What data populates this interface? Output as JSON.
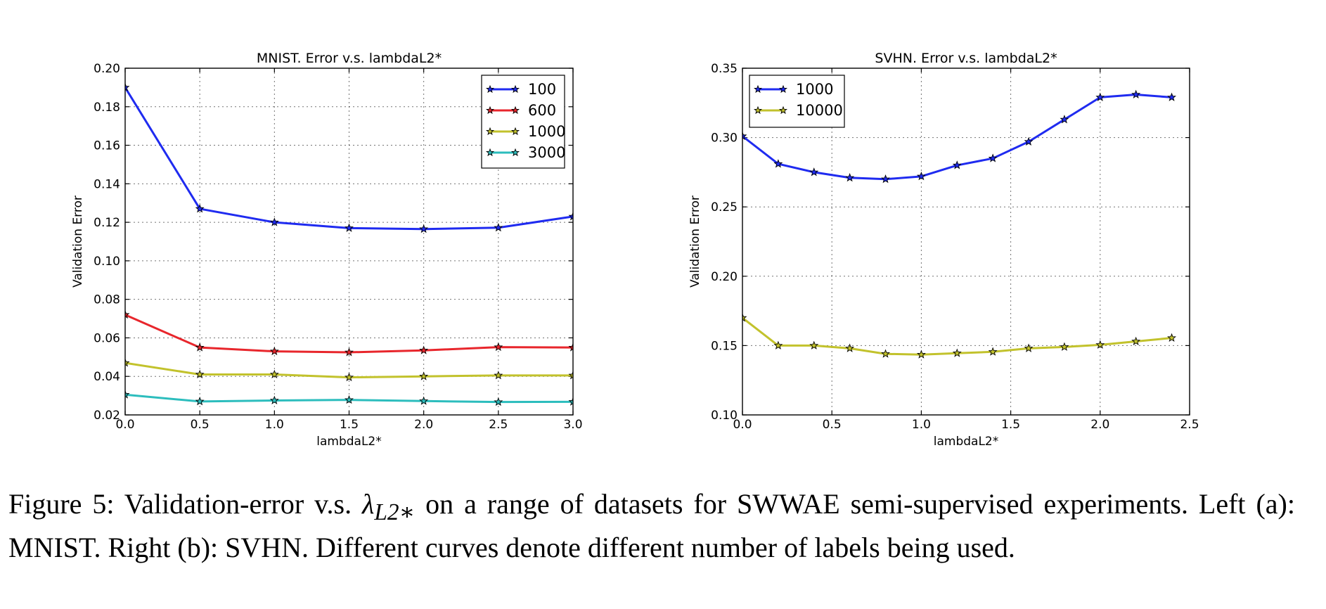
{
  "chart_data": [
    {
      "type": "line",
      "title": "MNIST. Error v.s. lambdaL2*",
      "xlabel": "lambdaL2*",
      "ylabel": "Validation Error",
      "xlim": [
        0.0,
        3.0
      ],
      "ylim": [
        0.02,
        0.2
      ],
      "xticks": [
        "0.0",
        "0.5",
        "1.0",
        "1.5",
        "2.0",
        "2.5",
        "3.0"
      ],
      "yticks": [
        "0.02",
        "0.04",
        "0.06",
        "0.08",
        "0.10",
        "0.12",
        "0.14",
        "0.16",
        "0.18",
        "0.20"
      ],
      "grid": true,
      "legend_position": "top-right",
      "x": [
        0.0,
        0.5,
        1.0,
        1.5,
        2.0,
        2.5,
        3.0
      ],
      "series": [
        {
          "name": "100",
          "color": "#1f2bf0",
          "values": [
            0.19,
            0.127,
            0.12,
            0.117,
            0.1165,
            0.1172,
            0.123
          ]
        },
        {
          "name": "600",
          "color": "#e8262c",
          "values": [
            0.072,
            0.055,
            0.053,
            0.0525,
            0.0535,
            0.0552,
            0.055
          ]
        },
        {
          "name": "1000",
          "color": "#c2c22c",
          "values": [
            0.047,
            0.041,
            0.041,
            0.0395,
            0.04,
            0.0405,
            0.0405
          ]
        },
        {
          "name": "3000",
          "color": "#2cbdbd",
          "values": [
            0.0305,
            0.027,
            0.0275,
            0.0278,
            0.0272,
            0.0267,
            0.0268
          ]
        }
      ]
    },
    {
      "type": "line",
      "title": "SVHN. Error v.s. lambdaL2*",
      "xlabel": "lambdaL2*",
      "ylabel": "Validation Error",
      "xlim": [
        0.0,
        2.5
      ],
      "ylim": [
        0.1,
        0.35
      ],
      "xticks": [
        "0.0",
        "0.5",
        "1.0",
        "1.5",
        "2.0",
        "2.5"
      ],
      "yticks": [
        "0.10",
        "0.15",
        "0.20",
        "0.25",
        "0.30",
        "0.35"
      ],
      "grid": true,
      "legend_position": "top-left",
      "x": [
        0.0,
        0.2,
        0.4,
        0.6,
        0.8,
        1.0,
        1.2,
        1.4,
        1.6,
        1.8,
        2.0,
        2.2,
        2.4
      ],
      "series": [
        {
          "name": "1000",
          "color": "#1f2bf0",
          "values": [
            0.301,
            0.281,
            0.275,
            0.271,
            0.27,
            0.272,
            0.28,
            0.285,
            0.297,
            0.313,
            0.329,
            0.331,
            0.329
          ]
        },
        {
          "name": "10000",
          "color": "#c2c22c",
          "values": [
            0.17,
            0.15,
            0.15,
            0.148,
            0.144,
            0.1435,
            0.1445,
            0.1455,
            0.148,
            0.149,
            0.1505,
            0.153,
            0.1555
          ]
        }
      ]
    }
  ],
  "caption": {
    "before_symbol": "Figure 5: Validation-error v.s. ",
    "symbol": "λ",
    "symbol_subscript": "L2∗",
    "after_symbol": " on a range of datasets for SWWAE semi-supervised experiments. Left (a): MNIST. Right (b): SVHN. Different curves denote different number of labels being used."
  }
}
